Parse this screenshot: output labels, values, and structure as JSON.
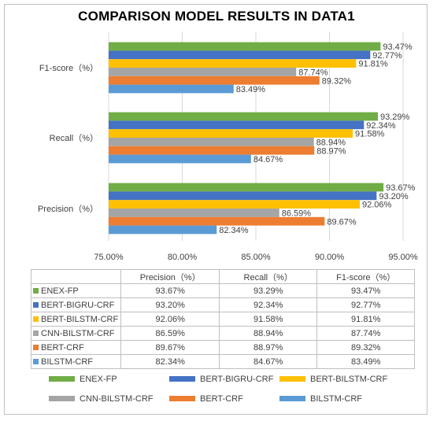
{
  "chart_data": {
    "type": "bar",
    "orientation": "horizontal",
    "title": "COMPARISON MODEL RESULTS IN DATA1",
    "categories": [
      "Precision（%）",
      "Recall（%）",
      "F1-score（%）"
    ],
    "xlim": [
      0.75,
      0.95
    ],
    "xticks": [
      "75.00%",
      "80.00%",
      "85.00%",
      "90.00%",
      "95.00%"
    ],
    "xtick_values": [
      0.75,
      0.8,
      0.85,
      0.9,
      0.95
    ],
    "grid": "vertical",
    "legend_position": "bottom",
    "series": [
      {
        "name": "ENEX-FP",
        "color": "#70ad47",
        "values": [
          0.9367,
          0.9329,
          0.9347
        ],
        "labels": [
          "93.67%",
          "93.29%",
          "93.47%"
        ]
      },
      {
        "name": "BERT-BIGRU-CRF",
        "color": "#4472c4",
        "values": [
          0.932,
          0.9234,
          0.9277
        ],
        "labels": [
          "93.20%",
          "92.34%",
          "92.77%"
        ]
      },
      {
        "name": "BERT-BILSTM-CRF",
        "color": "#ffc000",
        "values": [
          0.9206,
          0.9158,
          0.9181
        ],
        "labels": [
          "92.06%",
          "91.58%",
          "91.81%"
        ]
      },
      {
        "name": "CNN-BILSTM-CRF",
        "color": "#a5a5a5",
        "values": [
          0.8659,
          0.8894,
          0.8774
        ],
        "labels": [
          "86.59%",
          "88.94%",
          "87.74%"
        ]
      },
      {
        "name": "BERT-CRF",
        "color": "#ed7d31",
        "values": [
          0.8967,
          0.8897,
          0.8932
        ],
        "labels": [
          "89.67%",
          "88.97%",
          "89.32%"
        ]
      },
      {
        "name": "BILSTM-CRF",
        "color": "#5b9bd5",
        "values": [
          0.8234,
          0.8467,
          0.8349
        ],
        "labels": [
          "82.34%",
          "84.67%",
          "83.49%"
        ]
      }
    ]
  },
  "table": {
    "headers": [
      "Precision（%）",
      "Recall（%）",
      "F1-score（%）"
    ],
    "rows": [
      {
        "name": "ENEX-FP",
        "cells": [
          "93.67%",
          "93.29%",
          "93.47%"
        ]
      },
      {
        "name": "BERT-BIGRU-CRF",
        "cells": [
          "93.20%",
          "92.34%",
          "92.77%"
        ]
      },
      {
        "name": "BERT-BILSTM-CRF",
        "cells": [
          "92.06%",
          "91.58%",
          "91.81%"
        ]
      },
      {
        "name": "CNN-BILSTM-CRF",
        "cells": [
          "86.59%",
          "88.94%",
          "87.74%"
        ]
      },
      {
        "name": "BERT-CRF",
        "cells": [
          "89.67%",
          "88.97%",
          "89.32%"
        ]
      },
      {
        "name": "BILSTM-CRF",
        "cells": [
          "82.34%",
          "84.67%",
          "83.49%"
        ]
      }
    ]
  }
}
